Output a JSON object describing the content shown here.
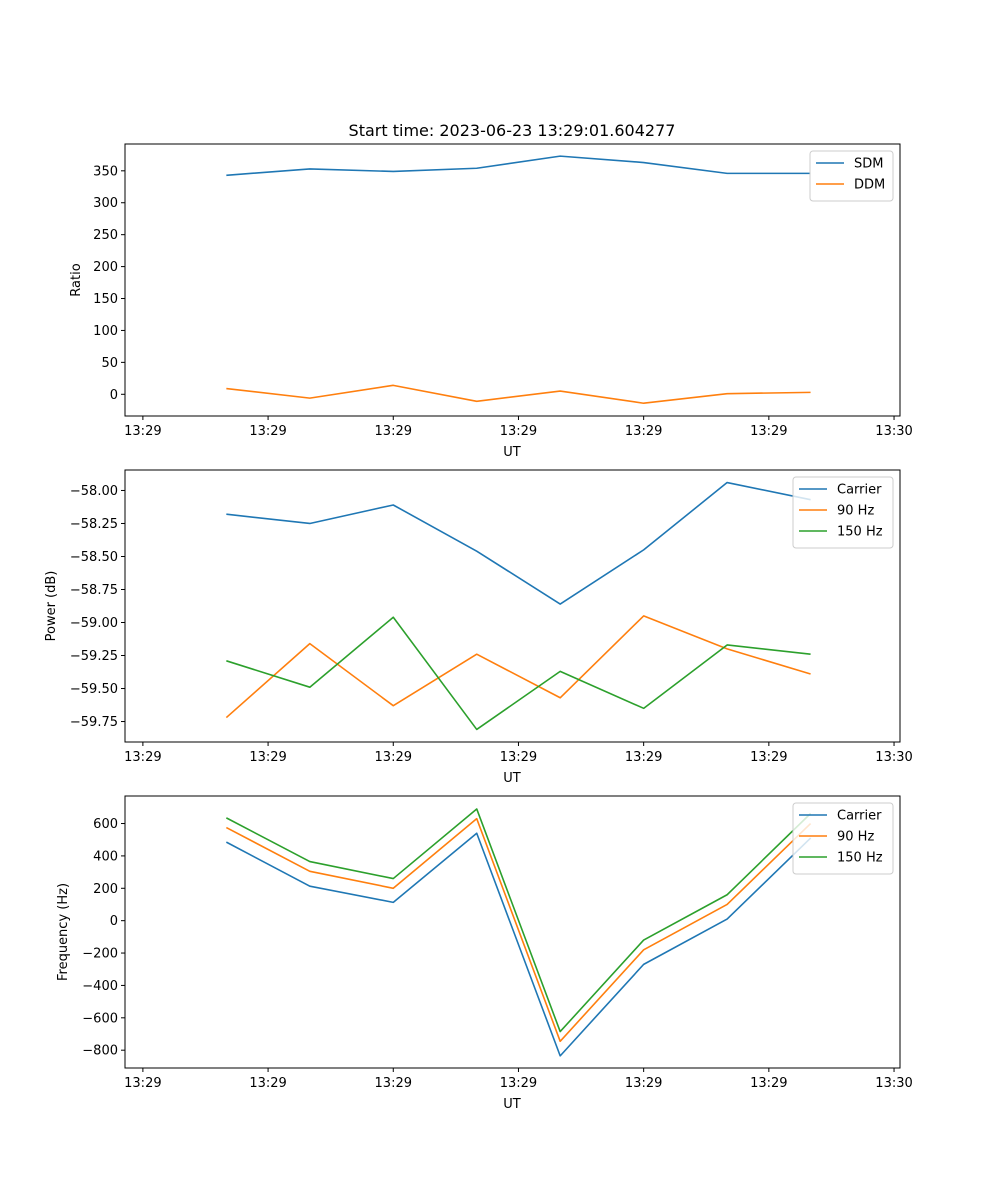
{
  "chart_data": [
    {
      "type": "line",
      "title": "Start time: 2023-06-23 13:29:01.604277",
      "xlabel": "UT",
      "ylabel": "Ratio",
      "x": [
        0.7,
        1.4,
        2.1,
        2.8,
        3.5,
        4.2,
        4.9,
        5.6
      ],
      "xlim": [
        -0.15,
        6.35
      ],
      "x_ticks": [
        0,
        1.05,
        2.1,
        3.15,
        4.2,
        5.25,
        6.3
      ],
      "x_tick_labels": [
        "13:29",
        "13:29",
        "13:29",
        "13:29",
        "13:29",
        "13:29",
        "13:30"
      ],
      "ylim": [
        -34,
        392
      ],
      "y_ticks": [
        0,
        50,
        100,
        150,
        200,
        250,
        300,
        350
      ],
      "y_tick_labels": [
        "0",
        "50",
        "100",
        "150",
        "200",
        "250",
        "300",
        "350"
      ],
      "legend_position": "top-right",
      "series": [
        {
          "name": "SDM",
          "color": "#1f77b4",
          "values": [
            343,
            353,
            349,
            354,
            373,
            363,
            346,
            346
          ]
        },
        {
          "name": "DDM",
          "color": "#ff7f0e",
          "values": [
            9,
            -6,
            14,
            -11,
            5,
            -14,
            1,
            3
          ]
        }
      ]
    },
    {
      "type": "line",
      "title": "",
      "xlabel": "UT",
      "ylabel": "Power (dB)",
      "x": [
        0.7,
        1.4,
        2.1,
        2.8,
        3.5,
        4.2,
        4.9,
        5.6
      ],
      "xlim": [
        -0.15,
        6.35
      ],
      "x_ticks": [
        0,
        1.05,
        2.1,
        3.15,
        4.2,
        5.25,
        6.3
      ],
      "x_tick_labels": [
        "13:29",
        "13:29",
        "13:29",
        "13:29",
        "13:29",
        "13:29",
        "13:30"
      ],
      "ylim": [
        -59.905,
        -57.845
      ],
      "y_ticks": [
        -59.75,
        -59.5,
        -59.25,
        -59.0,
        -58.75,
        -58.5,
        -58.25,
        -58.0
      ],
      "y_tick_labels": [
        "−59.75",
        "−59.50",
        "−59.25",
        "−59.00",
        "−58.75",
        "−58.50",
        "−58.25",
        "−58.00"
      ],
      "legend_position": "top-right",
      "series": [
        {
          "name": "Carrier",
          "color": "#1f77b4",
          "values": [
            -58.18,
            -58.25,
            -58.11,
            -58.46,
            -58.86,
            -58.45,
            -57.94,
            -58.07
          ]
        },
        {
          "name": "90 Hz",
          "color": "#ff7f0e",
          "values": [
            -59.72,
            -59.16,
            -59.63,
            -59.24,
            -59.57,
            -58.95,
            -59.2,
            -59.39
          ]
        },
        {
          "name": "150 Hz",
          "color": "#2ca02c",
          "values": [
            -59.29,
            -59.49,
            -58.96,
            -59.81,
            -59.37,
            -59.65,
            -59.17,
            -59.24
          ]
        }
      ]
    },
    {
      "type": "line",
      "title": "",
      "xlabel": "UT",
      "ylabel": "Frequency (Hz)",
      "x": [
        0.7,
        1.4,
        2.1,
        2.8,
        3.5,
        4.2,
        4.9,
        5.6
      ],
      "xlim": [
        -0.15,
        6.35
      ],
      "x_ticks": [
        0,
        1.05,
        2.1,
        3.15,
        4.2,
        5.25,
        6.3
      ],
      "x_tick_labels": [
        "13:29",
        "13:29",
        "13:29",
        "13:29",
        "13:29",
        "13:29",
        "13:30"
      ],
      "ylim": [
        -910,
        770
      ],
      "y_ticks": [
        -800,
        -600,
        -400,
        -200,
        0,
        200,
        400,
        600
      ],
      "y_tick_labels": [
        "−800",
        "−600",
        "−400",
        "−200",
        "0",
        "200",
        "400",
        "600"
      ],
      "legend_position": "top-right",
      "series": [
        {
          "name": "Carrier",
          "color": "#1f77b4",
          "values": [
            485,
            213,
            113,
            540,
            -835,
            -270,
            10,
            510
          ]
        },
        {
          "name": "90 Hz",
          "color": "#ff7f0e",
          "values": [
            575,
            305,
            200,
            630,
            -745,
            -180,
            100,
            600
          ]
        },
        {
          "name": "150 Hz",
          "color": "#2ca02c",
          "values": [
            635,
            365,
            260,
            690,
            -685,
            -120,
            160,
            662
          ]
        }
      ]
    }
  ]
}
